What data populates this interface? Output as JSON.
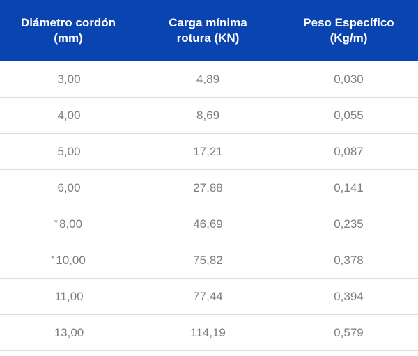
{
  "table": {
    "headers": [
      {
        "line1": "Diámetro cordón",
        "line2": "(mm)"
      },
      {
        "line1": "Carga mínima",
        "line2": "rotura (KN)"
      },
      {
        "line1": "Peso Específico",
        "line2": "(Kg/m)"
      }
    ],
    "rows": [
      {
        "marker": "",
        "diameter": "3,00",
        "load": "4,89",
        "weight": "0,030"
      },
      {
        "marker": "",
        "diameter": "4,00",
        "load": "8,69",
        "weight": "0,055"
      },
      {
        "marker": "",
        "diameter": "5,00",
        "load": "17,21",
        "weight": "0,087"
      },
      {
        "marker": "",
        "diameter": "6,00",
        "load": "27,88",
        "weight": "0,141"
      },
      {
        "marker": "*",
        "diameter": "8,00",
        "load": "46,69",
        "weight": "0,235"
      },
      {
        "marker": "*",
        "diameter": "10,00",
        "load": "75,82",
        "weight": "0,378"
      },
      {
        "marker": "",
        "diameter": "11,00",
        "load": "77,44",
        "weight": "0,394"
      },
      {
        "marker": "",
        "diameter": "13,00",
        "load": "114,19",
        "weight": "0,579"
      }
    ]
  },
  "colors": {
    "header_bg": "#0a44b0",
    "header_text": "#ffffff",
    "cell_text": "#7d7d7d",
    "row_border": "#dcdcdc"
  }
}
